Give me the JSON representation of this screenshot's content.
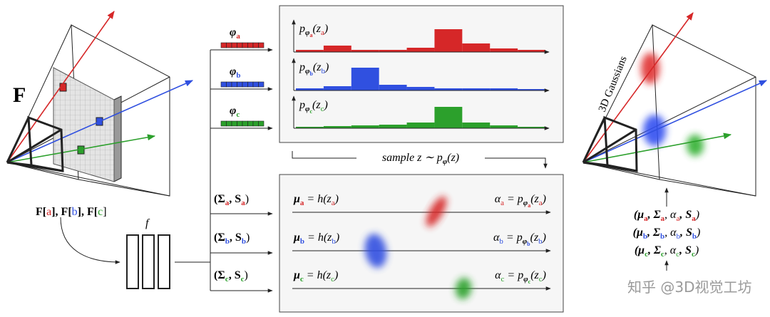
{
  "feature_label": "F",
  "features": [
    "F[",
    "a",
    "], F[",
    "b",
    "], F[",
    "c",
    "]"
  ],
  "network_label": "f",
  "embeddings": [
    [
      "φ",
      "a"
    ],
    [
      "φ",
      "b"
    ],
    [
      "φ",
      "c"
    ]
  ],
  "distributions": [
    [
      "p",
      "φ",
      "a",
      "(z",
      "a",
      ")"
    ],
    [
      "p",
      "φ",
      "b",
      "(z",
      "b",
      ")"
    ],
    [
      "p",
      "φ",
      "c",
      "(z",
      "c",
      ")"
    ]
  ],
  "sample_label": [
    "sample z ∼ p",
    "φ",
    "(z)"
  ],
  "covariances": [
    [
      "(Σ",
      "a",
      ", S",
      "a",
      ")"
    ],
    [
      "(Σ",
      "b",
      ", S",
      "b",
      ")"
    ],
    [
      "(Σ",
      "c",
      ", S",
      "c",
      ")"
    ]
  ],
  "means": [
    [
      "μ",
      "a",
      " = h(z",
      "a",
      ")"
    ],
    [
      "μ",
      "b",
      " = h(z",
      "b",
      ")"
    ],
    [
      "μ",
      "c",
      " = h(z",
      "c",
      ")"
    ]
  ],
  "opacities": [
    [
      "α",
      "a",
      " = p",
      "φ",
      "a",
      "(z",
      "a",
      ")"
    ],
    [
      "α",
      "b",
      " = p",
      "φ",
      "b",
      "(z",
      "b",
      ")"
    ],
    [
      "α",
      "c",
      " = p",
      "φ",
      "c",
      "(z",
      "c",
      ")"
    ]
  ],
  "gaussians_label": "3D Gaussians",
  "outputs": [
    [
      "(μ",
      "a",
      ", Σ",
      "a",
      ", α",
      "a",
      ", S",
      "a",
      ")"
    ],
    [
      "(μ",
      "b",
      ", Σ",
      "b",
      ", α",
      "b",
      ", S",
      "b",
      ")"
    ],
    [
      "(μ",
      "c",
      ", Σ",
      "c",
      ", α",
      "c",
      ", S",
      "c",
      ")"
    ]
  ],
  "watermark": "知乎 @3D视觉工坊"
}
